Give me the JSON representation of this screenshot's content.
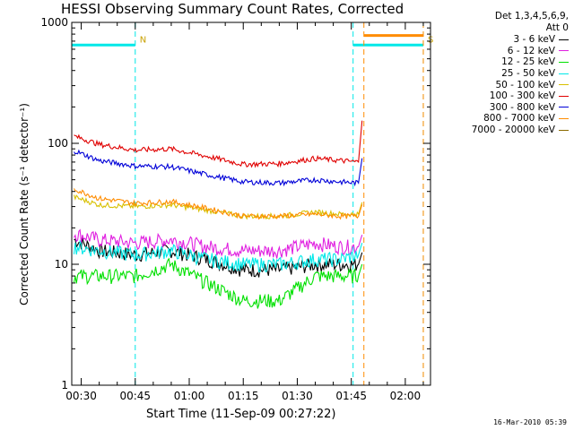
{
  "app": {
    "title": "HESSI Observing Summary Count Rates, Corrected",
    "timestamp": "16-Mar-2010 05:39"
  },
  "chart_data": {
    "type": "line",
    "title": "HESSI Observing Summary Count Rates, Corrected",
    "xlabel": "Start Time (11-Sep-09 00:27:22)",
    "ylabel": "Corrected Count Rate (s⁻¹ detector⁻¹)",
    "yscale": "log",
    "ylim": [
      1,
      1000
    ],
    "xlim": [
      "00:27:22",
      "02:07:00"
    ],
    "x_ticks": [
      "00:30",
      "00:45",
      "01:00",
      "01:15",
      "01:30",
      "01:45",
      "02:00"
    ],
    "y_ticks": [
      "1",
      "10",
      "100",
      "1000"
    ],
    "grid": false,
    "legend_position": "right",
    "legend_header": [
      "Det 1,3,4,5,6,9,",
      "Att 0"
    ],
    "series": [
      {
        "name": "3 - 6 keV",
        "color": "#000000",
        "x": [
          "00:28",
          "00:35",
          "00:45",
          "00:55",
          "01:05",
          "01:15",
          "01:25",
          "01:35",
          "01:42",
          "01:47"
        ],
        "values": [
          16,
          13,
          12,
          13,
          11,
          9,
          9,
          10,
          10,
          10
        ]
      },
      {
        "name": "6 - 12 keV",
        "color": "#e020e0",
        "x": [
          "00:28",
          "00:35",
          "00:45",
          "00:55",
          "01:05",
          "01:15",
          "01:25",
          "01:35",
          "01:42",
          "01:47"
        ],
        "values": [
          18,
          16,
          15,
          16,
          14,
          13,
          13,
          15,
          14,
          14
        ]
      },
      {
        "name": "12 - 25 keV",
        "color": "#00e000",
        "x": [
          "00:28",
          "00:35",
          "00:45",
          "00:55",
          "01:05",
          "01:15",
          "01:25",
          "01:35",
          "01:42",
          "01:47"
        ],
        "values": [
          8,
          8,
          8,
          10,
          7,
          5,
          5,
          8,
          8,
          8
        ]
      },
      {
        "name": "25 - 50 keV",
        "color": "#00e8e8",
        "x": [
          "00:28",
          "00:35",
          "00:45",
          "00:55",
          "01:05",
          "01:15",
          "01:25",
          "01:35",
          "01:42",
          "01:47"
        ],
        "values": [
          14,
          13,
          12,
          13,
          11,
          10,
          10,
          11,
          11,
          12
        ]
      },
      {
        "name": "50 - 100 keV",
        "color": "#d8c000",
        "x": [
          "00:28",
          "00:35",
          "00:45",
          "00:55",
          "01:05",
          "01:15",
          "01:25",
          "01:35",
          "01:42",
          "01:47"
        ],
        "values": [
          36,
          31,
          30,
          31,
          28,
          25,
          25,
          27,
          26,
          26
        ]
      },
      {
        "name": "100 - 300 keV",
        "color": "#e00000",
        "x": [
          "00:28",
          "00:35",
          "00:45",
          "00:55",
          "01:05",
          "01:15",
          "01:25",
          "01:35",
          "01:42",
          "01:47"
        ],
        "values": [
          115,
          98,
          88,
          90,
          78,
          67,
          68,
          75,
          72,
          70
        ]
      },
      {
        "name": "300 - 800 keV",
        "color": "#0000d8",
        "x": [
          "00:28",
          "00:35",
          "00:45",
          "00:55",
          "01:05",
          "01:15",
          "01:25",
          "01:35",
          "01:42",
          "01:47"
        ],
        "values": [
          87,
          72,
          65,
          64,
          55,
          48,
          47,
          50,
          48,
          47
        ]
      },
      {
        "name": "800 - 7000 keV",
        "color": "#ff8c00",
        "x": [
          "00:28",
          "00:35",
          "00:45",
          "00:55",
          "01:05",
          "01:15",
          "01:25",
          "01:35",
          "01:42",
          "01:47"
        ],
        "values": [
          42,
          35,
          32,
          33,
          29,
          25,
          25,
          26,
          25,
          25
        ]
      },
      {
        "name": "7000 - 20000 keV",
        "color": "#8b6a00",
        "x": [],
        "values": []
      }
    ],
    "flags": [
      {
        "label": "N",
        "color": "#00e8e8",
        "x_start": "00:27:22",
        "x_end": "00:45:00",
        "value": 650
      },
      {
        "label": "S",
        "color": "#00e8e8",
        "x_start": "01:45:30",
        "x_end": "02:05:00",
        "value": 650
      },
      {
        "label": "",
        "color": "#ff8c00",
        "x_start": "01:48:30",
        "x_end": "02:05:00",
        "value": 780
      }
    ]
  }
}
